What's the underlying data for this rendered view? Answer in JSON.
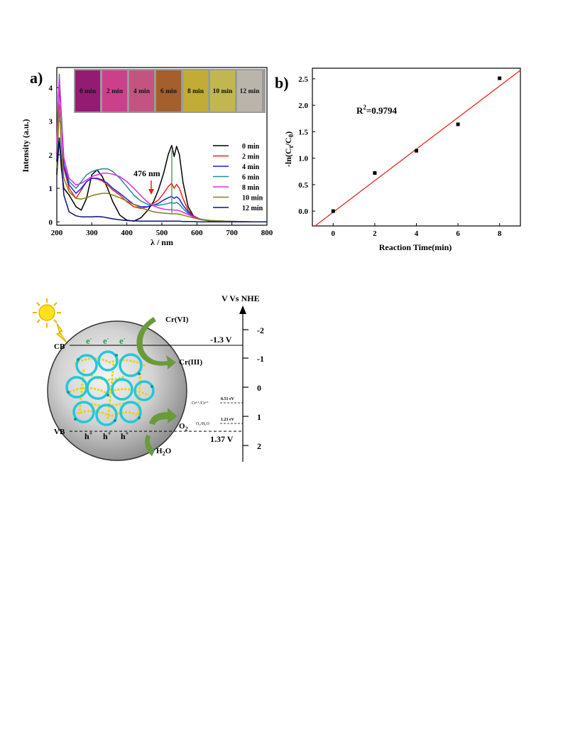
{
  "panel_a": {
    "label": "a)",
    "swatch_labels": [
      "0 min",
      "2 min",
      "4 min",
      "6 min",
      "8 min",
      "10 min",
      "12 min"
    ],
    "swatch_colors": [
      "#93106f",
      "#d0378a",
      "#c74d7f",
      "#a65a24",
      "#c7ae2c",
      "#c4b94a",
      "#bdb6ad"
    ],
    "annotation": "476 nm"
  },
  "panel_b": {
    "label": "b)",
    "r2": "=0.9794"
  },
  "chart_data": [
    {
      "type": "line",
      "xlabel": "λ / nm",
      "ylabel": "Intensity (a.u.)",
      "xlim": [
        200,
        800
      ],
      "ylim": [
        -0.1,
        4.6
      ],
      "xticks": [
        200,
        300,
        400,
        500,
        600,
        700,
        800
      ],
      "yticks": [
        0,
        1,
        2,
        3,
        4
      ],
      "x": [
        200,
        207,
        213,
        220,
        235,
        255,
        270,
        285,
        300,
        315,
        330,
        345,
        360,
        380,
        400,
        420,
        440,
        460,
        476,
        490,
        505,
        518,
        528,
        535,
        542,
        550,
        560,
        575,
        590,
        610,
        640,
        680,
        720,
        760,
        800
      ],
      "series": [
        {
          "name": "0 min",
          "color": "#000000",
          "values": [
            1.4,
            2.5,
            1.6,
            1.0,
            0.8,
            0.45,
            0.35,
            0.7,
            1.4,
            1.55,
            1.35,
            1.0,
            0.6,
            0.2,
            0.05,
            0.02,
            0.12,
            0.35,
            0.6,
            0.95,
            1.45,
            2.0,
            2.28,
            1.95,
            2.25,
            2.0,
            1.2,
            0.45,
            0.18,
            0.08,
            0.02,
            0.01,
            0.0,
            0.0,
            0.0
          ]
        },
        {
          "name": "2 min",
          "color": "#e8261c",
          "values": [
            2.0,
            4.2,
            3.0,
            1.6,
            1.0,
            0.7,
            0.95,
            1.2,
            1.3,
            1.28,
            1.22,
            1.1,
            0.95,
            0.8,
            0.6,
            0.45,
            0.4,
            0.45,
            0.55,
            0.65,
            0.85,
            1.05,
            1.15,
            1.0,
            1.12,
            1.0,
            0.7,
            0.35,
            0.17,
            0.08,
            0.03,
            0.01,
            0.0,
            0.0,
            0.0
          ]
        },
        {
          "name": "4 min",
          "color": "#1c1ce6",
          "values": [
            1.8,
            4.1,
            3.1,
            1.7,
            1.1,
            0.85,
            1.0,
            1.2,
            1.3,
            1.3,
            1.25,
            1.15,
            1.0,
            0.85,
            0.68,
            0.52,
            0.45,
            0.45,
            0.5,
            0.55,
            0.65,
            0.72,
            0.76,
            0.7,
            0.75,
            0.68,
            0.5,
            0.3,
            0.15,
            0.07,
            0.03,
            0.01,
            0.0,
            0.0,
            0.0
          ]
        },
        {
          "name": "6 min",
          "color": "#1a9090",
          "values": [
            2.2,
            4.4,
            3.2,
            1.9,
            1.2,
            1.0,
            1.2,
            1.4,
            1.5,
            1.55,
            1.58,
            1.58,
            1.5,
            1.3,
            1.05,
            0.8,
            0.62,
            0.52,
            0.5,
            0.5,
            0.52,
            0.55,
            0.58,
            0.55,
            0.58,
            0.52,
            0.4,
            0.25,
            0.14,
            0.07,
            0.03,
            0.01,
            0.0,
            0.0,
            0.0
          ]
        },
        {
          "name": "8 min",
          "color": "#ee22ee",
          "values": [
            2.3,
            4.3,
            3.0,
            1.9,
            1.3,
            1.1,
            1.15,
            1.25,
            1.35,
            1.4,
            1.45,
            1.45,
            1.42,
            1.35,
            1.2,
            1.0,
            0.78,
            0.58,
            0.48,
            0.42,
            0.38,
            0.36,
            0.36,
            0.35,
            0.35,
            0.33,
            0.29,
            0.22,
            0.15,
            0.08,
            0.04,
            0.02,
            0.01,
            0.0,
            0.0
          ]
        },
        {
          "name": "10 min",
          "color": "#808010",
          "values": [
            1.6,
            3.5,
            2.2,
            1.3,
            0.9,
            0.7,
            0.68,
            0.72,
            0.78,
            0.82,
            0.85,
            0.85,
            0.8,
            0.72,
            0.62,
            0.52,
            0.42,
            0.35,
            0.3,
            0.28,
            0.26,
            0.25,
            0.24,
            0.24,
            0.24,
            0.23,
            0.2,
            0.16,
            0.12,
            0.07,
            0.04,
            0.02,
            0.01,
            0.0,
            0.0
          ]
        },
        {
          "name": "12 min",
          "color": "#101080",
          "values": [
            1.8,
            2.5,
            1.8,
            0.8,
            0.3,
            0.18,
            0.15,
            0.15,
            0.15,
            0.16,
            0.15,
            0.12,
            0.09,
            0.06,
            0.04,
            0.03,
            0.02,
            0.02,
            0.02,
            0.02,
            0.02,
            0.02,
            0.02,
            0.02,
            0.02,
            0.02,
            0.01,
            0.01,
            0.01,
            0.0,
            0.0,
            0.0,
            0.0,
            0.0,
            0.0
          ]
        }
      ]
    },
    {
      "type": "scatter",
      "xlabel": "Reaction Time(min)",
      "ylabel": "-ln(Ct/C0)",
      "xlim": [
        -1,
        9
      ],
      "ylim": [
        -0.28,
        2.7
      ],
      "xticks": [
        0,
        2,
        4,
        6,
        8
      ],
      "yticks": [
        0.0,
        0.5,
        1.0,
        1.5,
        2.0,
        2.5
      ],
      "x": [
        0,
        2,
        4,
        6,
        8
      ],
      "y": [
        0.0,
        0.72,
        1.14,
        1.64,
        2.51
      ],
      "fit": {
        "slope": 0.298,
        "intercept": -0.02,
        "color": "#e8261c"
      }
    }
  ],
  "panel_c": {
    "axis_title": "V Vs NHE",
    "ticks": [
      "-2",
      "-1",
      "0",
      "1",
      "2"
    ],
    "cb": "CB",
    "vb": "VB",
    "electron": "e",
    "hole": "h",
    "cb_potential": "-1.3 V",
    "vb_potential": "1.37 V",
    "cr6": "Cr(VI)",
    "cr3": "Cr(III)",
    "o2": "O",
    "h2o": "H",
    "redox1": "Cr⁶⁺/Cr³⁺",
    "redox1_value": "0.51 eV",
    "redox2": "O₂/H₂O",
    "redox2_value": "1.23 eV"
  }
}
